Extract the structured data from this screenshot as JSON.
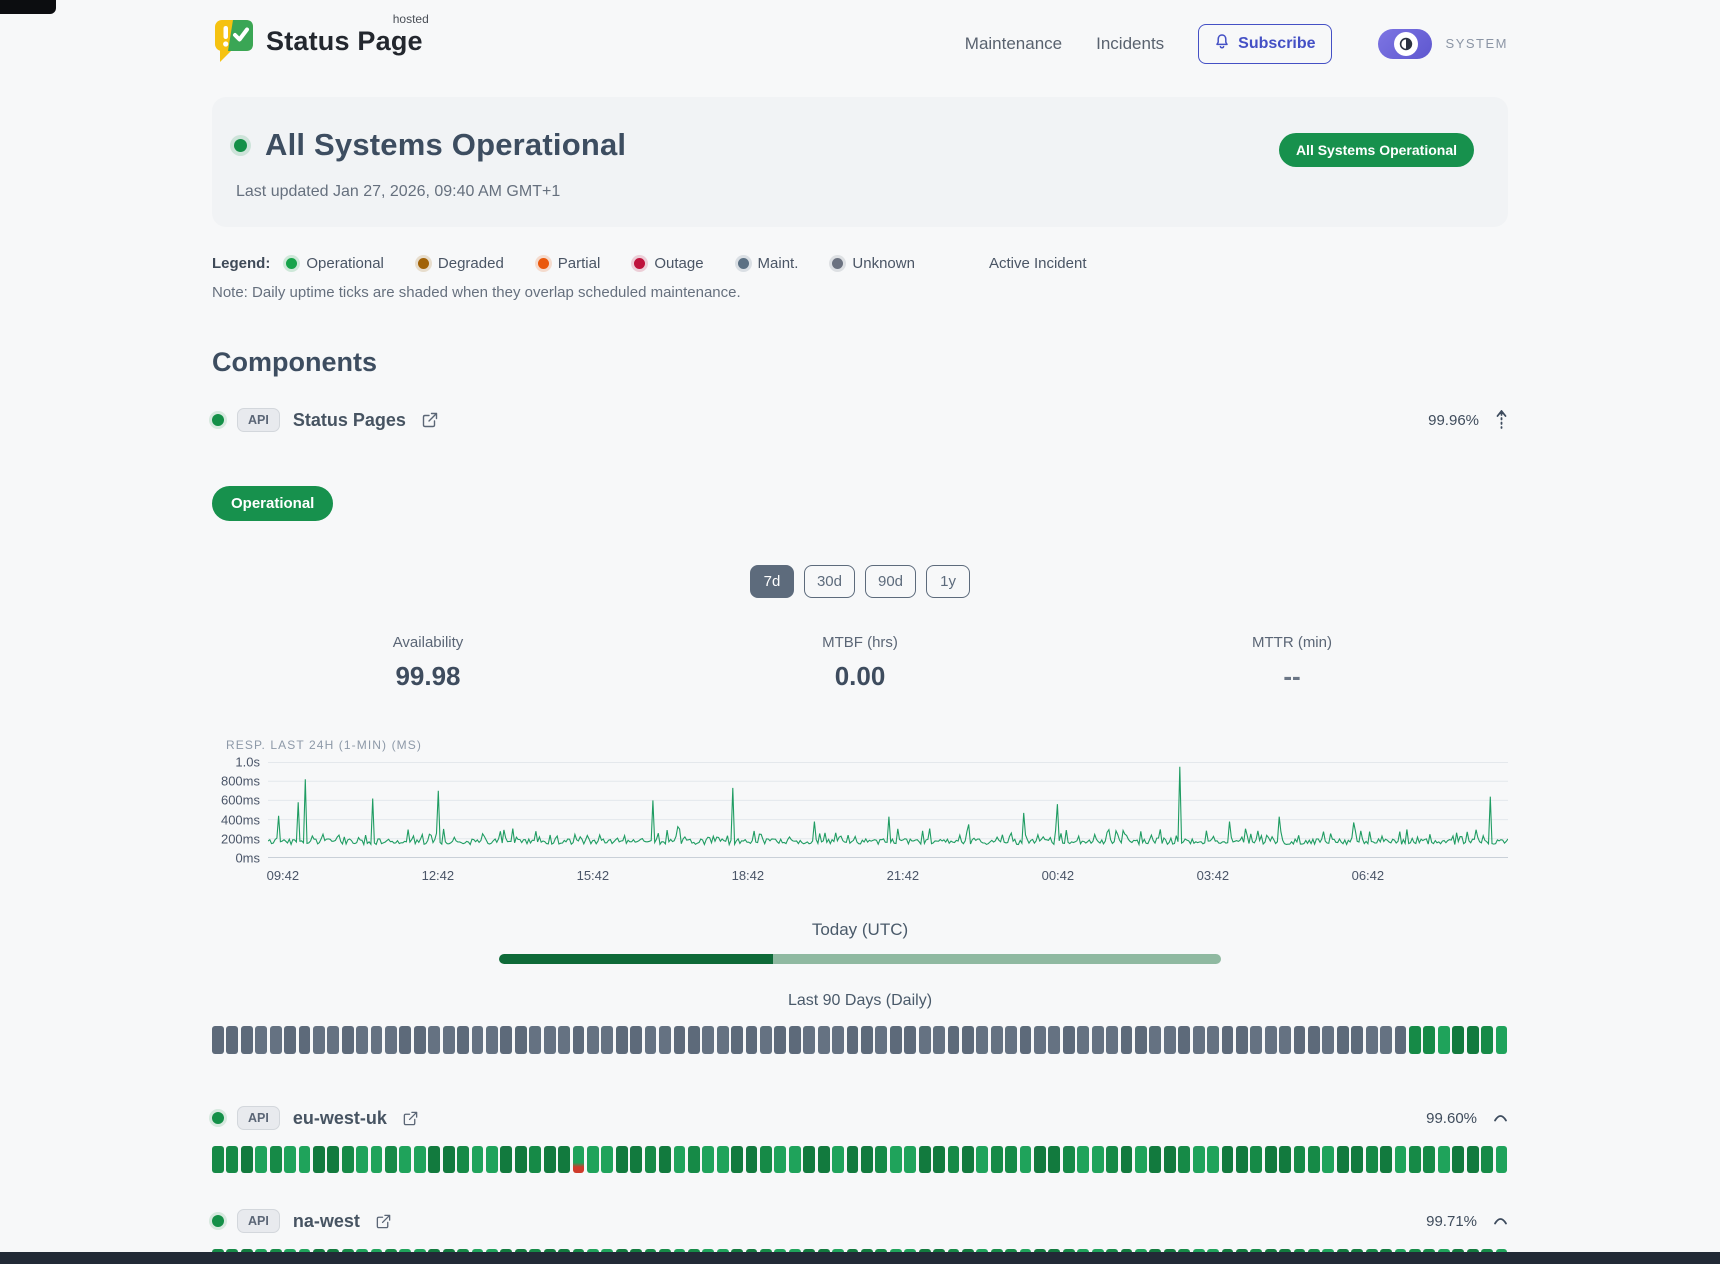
{
  "header": {
    "brand": "Status Page",
    "brand_sup": "hosted",
    "nav": [
      {
        "label": "Maintenance"
      },
      {
        "label": "Incidents"
      }
    ],
    "subscribe_label": "Subscribe",
    "theme_label": "SYSTEM"
  },
  "hero": {
    "title": "All Systems Operational",
    "updated": "Last updated Jan 27, 2026, 09:40 AM GMT+1",
    "badge": "All Systems Operational"
  },
  "legend": {
    "label": "Legend:",
    "items": [
      {
        "label": "Operational",
        "color": "#16a34a"
      },
      {
        "label": "Degraded",
        "color": "#a16207"
      },
      {
        "label": "Partial",
        "color": "#ea580c"
      },
      {
        "label": "Outage",
        "color": "#be123c"
      },
      {
        "label": "Maint.",
        "color": "#5b7083"
      },
      {
        "label": "Unknown",
        "color": "#6b7280"
      }
    ],
    "active_incident_label": "Active Incident",
    "note": "Note: Daily uptime ticks are shaded when they overlap scheduled maintenance."
  },
  "components": {
    "title": "Components",
    "items": [
      {
        "tag": "API",
        "name": "Status Pages",
        "uptime": "99.96%",
        "expanded": true,
        "status_badge": "Operational",
        "ranges": [
          "7d",
          "30d",
          "90d",
          "1y"
        ],
        "active_range": "7d",
        "metrics": [
          {
            "label": "Availability",
            "value": "99.98"
          },
          {
            "label": "MTBF (hrs)",
            "value": "0.00"
          },
          {
            "label": "MTTR (min)",
            "value": "--"
          }
        ],
        "today_label": "Today (UTC)",
        "today_progress": 0.38,
        "history_label": "Last 90 Days (Daily)",
        "ticks": [
          {
            "status": "nodata",
            "count": 83
          },
          {
            "status": "operational",
            "count": 7
          }
        ]
      },
      {
        "tag": "API",
        "name": "eu-west-uk",
        "uptime": "99.60%",
        "expanded": false,
        "ticks": [
          {
            "status": "operational",
            "count": 25
          },
          {
            "status": "partial",
            "count": 1
          },
          {
            "status": "operational",
            "count": 64
          }
        ]
      },
      {
        "tag": "API",
        "name": "na-west",
        "uptime": "99.71%",
        "expanded": false,
        "ticks": [
          {
            "status": "operational",
            "count": 31
          },
          {
            "status": "degraded",
            "count": 1
          },
          {
            "status": "operational",
            "count": 58
          }
        ]
      }
    ]
  },
  "chart_data": {
    "type": "line",
    "title": "RESP. LAST 24H (1-MIN) (MS)",
    "ylabels": [
      "0ms",
      "200ms",
      "400ms",
      "600ms",
      "800ms",
      "1.0s"
    ],
    "ymax_ms": 1000,
    "grid": true,
    "xlabels": [
      "09:42",
      "12:42",
      "15:42",
      "18:42",
      "21:42",
      "00:42",
      "03:42",
      "06:42"
    ],
    "line_color": "#1f9c62",
    "baseline_ms": [
      140,
      225
    ],
    "spikes": [
      {
        "t": 0.008,
        "ms": 440
      },
      {
        "t": 0.03,
        "ms": 820
      },
      {
        "t": 0.024,
        "ms": 580
      },
      {
        "t": 0.085,
        "ms": 620
      },
      {
        "t": 0.138,
        "ms": 700
      },
      {
        "t": 0.31,
        "ms": 600
      },
      {
        "t": 0.375,
        "ms": 730
      },
      {
        "t": 0.44,
        "ms": 380
      },
      {
        "t": 0.5,
        "ms": 430
      },
      {
        "t": 0.565,
        "ms": 350
      },
      {
        "t": 0.61,
        "ms": 470
      },
      {
        "t": 0.637,
        "ms": 560
      },
      {
        "t": 0.735,
        "ms": 950
      },
      {
        "t": 0.775,
        "ms": 380
      },
      {
        "t": 0.815,
        "ms": 430
      },
      {
        "t": 0.875,
        "ms": 370
      },
      {
        "t": 0.985,
        "ms": 640
      }
    ]
  }
}
